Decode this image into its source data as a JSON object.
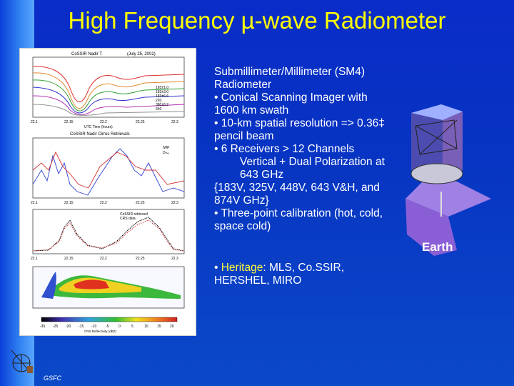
{
  "title": "High Frequency µ-wave Radiometer",
  "figure": {
    "panel1_title": "CoSSIR Nadir T",
    "panel1_date": "(July 25, 2002)",
    "panel1_legend": [
      "183±1.0",
      "183±3.0",
      "183±6.6",
      "220",
      "380±6.2",
      "640"
    ],
    "panel2_title": "CoSSIR Nadir Cirrus Retrievals",
    "panel2_legend": [
      "IWP",
      "Dₘₑ"
    ],
    "panel3_legend": [
      "CoSSIR retrieved",
      "CRS data"
    ],
    "panel4_cbar": [
      "-30",
      "-25",
      "-20",
      "-15",
      "-10",
      "-5",
      "0",
      "5",
      "10",
      "15",
      "20"
    ],
    "x_ticks_a": [
      "22.1",
      "22.15",
      "22.2",
      "22.25",
      "22.3"
    ],
    "x_label": "UTC Time (hours)",
    "cbar_label": "CRS Reflectivity (dBZ)"
  },
  "text": {
    "l1": "Submillimeter/Millimeter (SM4) Radiometer",
    "l2": "•  Conical Scanning Imager with 1600 km swath",
    "l3": "• 10-km spatial resolution => 0.36‡ pencil beam",
    "l4": "•  6 Receivers > 12 Channels",
    "l5": "Vertical + Dual Polarization at 643 GHz",
    "l6": " {183V,  325V, 448V, 643 V&H, and 874V   GHz}",
    "l7": "• Three-point calibration (hot, cold, space cold)",
    "l8_bullet": "• ",
    "l8_heritage": "Heritage",
    "l8_rest": ": MLS, Co.SSIR, HERSHEL, MIRO"
  },
  "earth_label": "Earth",
  "footer_logo": "GSFC",
  "colors": {
    "title": "#ffff00",
    "background": "#0a36c8",
    "text": "#ffffff"
  }
}
